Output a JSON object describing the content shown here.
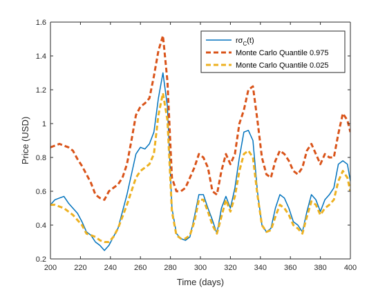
{
  "chart_data": {
    "type": "line",
    "title": "",
    "xlabel": "Time (days)",
    "ylabel": "Price (USD)",
    "xlim": [
      200,
      400
    ],
    "ylim": [
      0.2,
      1.6
    ],
    "xticks": [
      "200",
      "220",
      "240",
      "260",
      "280",
      "300",
      "320",
      "340",
      "360",
      "380",
      "400"
    ],
    "yticks": [
      "0.2",
      "0.4",
      "0.6",
      "0.8",
      "1",
      "1.2",
      "1.4",
      "1.6"
    ],
    "grid": false,
    "legend_position": "top-right",
    "series": [
      {
        "name": "rσ_C(t)",
        "legend_main": "rσ",
        "legend_sub": "C",
        "legend_tail": "(t)",
        "color": "#0072BD",
        "style": "solid",
        "x": [
          200,
          203,
          206,
          209,
          212,
          215,
          218,
          221,
          224,
          227,
          230,
          233,
          236,
          239,
          242,
          245,
          248,
          251,
          254,
          257,
          260,
          263,
          266,
          269,
          272,
          275,
          278,
          281,
          284,
          287,
          290,
          293,
          296,
          299,
          302,
          305,
          308,
          311,
          314,
          317,
          320,
          323,
          326,
          329,
          332,
          335,
          338,
          341,
          344,
          347,
          350,
          353,
          356,
          359,
          362,
          365,
          368,
          371,
          374,
          377,
          380,
          383,
          386,
          389,
          392,
          395,
          398,
          400
        ],
        "values": [
          0.52,
          0.55,
          0.56,
          0.57,
          0.53,
          0.5,
          0.47,
          0.42,
          0.36,
          0.34,
          0.3,
          0.28,
          0.25,
          0.28,
          0.33,
          0.38,
          0.48,
          0.58,
          0.7,
          0.82,
          0.86,
          0.85,
          0.88,
          0.95,
          1.15,
          1.3,
          1.1,
          0.5,
          0.35,
          0.32,
          0.31,
          0.33,
          0.45,
          0.58,
          0.58,
          0.5,
          0.43,
          0.35,
          0.5,
          0.57,
          0.5,
          0.62,
          0.8,
          0.95,
          0.96,
          0.9,
          0.6,
          0.4,
          0.36,
          0.38,
          0.5,
          0.58,
          0.56,
          0.5,
          0.42,
          0.4,
          0.36,
          0.48,
          0.58,
          0.55,
          0.48,
          0.55,
          0.58,
          0.62,
          0.76,
          0.78,
          0.76,
          0.66
        ]
      },
      {
        "name": "Monte Carlo Quantile 0.975",
        "color": "#D95319",
        "style": "dashed",
        "x": [
          200,
          203,
          206,
          209,
          212,
          215,
          218,
          221,
          224,
          227,
          230,
          233,
          236,
          239,
          242,
          245,
          248,
          251,
          254,
          257,
          260,
          263,
          266,
          269,
          272,
          275,
          278,
          281,
          284,
          287,
          290,
          293,
          296,
          299,
          302,
          305,
          308,
          311,
          314,
          317,
          320,
          323,
          326,
          329,
          332,
          335,
          338,
          341,
          344,
          347,
          350,
          353,
          356,
          359,
          362,
          365,
          368,
          371,
          374,
          377,
          380,
          383,
          386,
          389,
          392,
          395,
          398,
          400
        ],
        "values": [
          0.86,
          0.87,
          0.88,
          0.87,
          0.86,
          0.84,
          0.79,
          0.75,
          0.7,
          0.65,
          0.58,
          0.56,
          0.55,
          0.6,
          0.62,
          0.64,
          0.68,
          0.76,
          0.9,
          1.05,
          1.1,
          1.12,
          1.15,
          1.28,
          1.43,
          1.52,
          1.25,
          0.68,
          0.6,
          0.6,
          0.62,
          0.68,
          0.74,
          0.82,
          0.8,
          0.74,
          0.6,
          0.58,
          0.72,
          0.82,
          0.76,
          0.82,
          1.0,
          1.08,
          1.2,
          1.22,
          1.02,
          0.8,
          0.7,
          0.68,
          0.78,
          0.84,
          0.82,
          0.78,
          0.72,
          0.7,
          0.74,
          0.84,
          0.88,
          0.82,
          0.76,
          0.82,
          0.8,
          0.8,
          0.94,
          1.06,
          1.02,
          0.95
        ]
      },
      {
        "name": "Monte Carlo Quantile 0.025",
        "color": "#EDB120",
        "style": "dashed",
        "x": [
          200,
          203,
          206,
          209,
          212,
          215,
          218,
          221,
          224,
          227,
          230,
          233,
          236,
          239,
          242,
          245,
          248,
          251,
          254,
          257,
          260,
          263,
          266,
          269,
          272,
          275,
          278,
          281,
          284,
          287,
          290,
          293,
          296,
          299,
          302,
          305,
          308,
          311,
          314,
          317,
          320,
          323,
          326,
          329,
          332,
          335,
          338,
          341,
          344,
          347,
          350,
          353,
          356,
          359,
          362,
          365,
          368,
          371,
          374,
          377,
          380,
          383,
          386,
          389,
          392,
          395,
          398,
          400
        ],
        "values": [
          0.52,
          0.52,
          0.51,
          0.5,
          0.48,
          0.46,
          0.43,
          0.4,
          0.35,
          0.34,
          0.33,
          0.31,
          0.3,
          0.3,
          0.33,
          0.38,
          0.45,
          0.52,
          0.6,
          0.68,
          0.72,
          0.74,
          0.76,
          0.82,
          1.05,
          1.18,
          1.02,
          0.48,
          0.34,
          0.32,
          0.32,
          0.34,
          0.42,
          0.55,
          0.55,
          0.48,
          0.4,
          0.35,
          0.45,
          0.55,
          0.48,
          0.57,
          0.72,
          0.82,
          0.84,
          0.8,
          0.58,
          0.4,
          0.36,
          0.37,
          0.45,
          0.52,
          0.5,
          0.46,
          0.4,
          0.38,
          0.35,
          0.45,
          0.54,
          0.52,
          0.46,
          0.5,
          0.52,
          0.55,
          0.66,
          0.72,
          0.68,
          0.6
        ]
      }
    ]
  }
}
